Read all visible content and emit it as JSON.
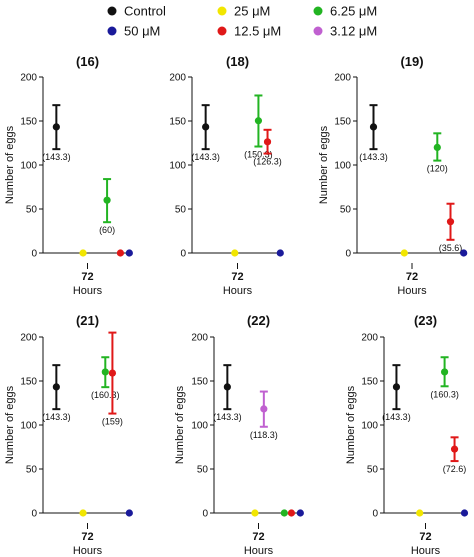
{
  "legend": [
    {
      "label": "Control",
      "color": "#111111"
    },
    {
      "label": "25 μM",
      "color": "#f2e600"
    },
    {
      "label": "6.25 μM",
      "color": "#22b422"
    },
    {
      "label": "50 μM",
      "color": "#1a1a9a"
    },
    {
      "label": "12.5 μM",
      "color": "#e01818"
    },
    {
      "label": "3.12 μM",
      "color": "#c060d0"
    }
  ],
  "chart_data": [
    {
      "type": "scatter",
      "title": "(16)",
      "xcategory": "72",
      "xlabel": "Hours",
      "ylabel": "Number of eggs",
      "ylim": [
        0,
        200
      ],
      "yticks": [
        0,
        50,
        100,
        150,
        200
      ],
      "points": [
        {
          "series": "Control",
          "value": 143.3,
          "err_low": 118,
          "err_high": 168,
          "label": "(143.3)",
          "pos": 0.15
        },
        {
          "series": "25 μM",
          "value": 0,
          "pos": 0.45
        },
        {
          "series": "6.25 μM",
          "value": 60,
          "err_low": 35,
          "err_high": 84,
          "label": "(60)",
          "pos": 0.72
        },
        {
          "series": "12.5 μM",
          "value": 0,
          "pos": 0.87
        },
        {
          "series": "50 μM",
          "value": 0,
          "pos": 0.97
        }
      ]
    },
    {
      "type": "scatter",
      "title": "(18)",
      "xcategory": "72",
      "xlabel": "Hours",
      "ylabel": "",
      "ylim": [
        0,
        200
      ],
      "yticks": [
        0,
        50,
        100,
        150,
        200
      ],
      "points": [
        {
          "series": "Control",
          "value": 143.3,
          "err_low": 118,
          "err_high": 168,
          "label": "(143.3)",
          "pos": 0.15
        },
        {
          "series": "25 μM",
          "value": 0,
          "pos": 0.47
        },
        {
          "series": "6.25 μM",
          "value": 150.3,
          "err_low": 121,
          "err_high": 179,
          "label": "(150.3)",
          "pos": 0.73
        },
        {
          "series": "12.5 μM",
          "value": 126.3,
          "err_low": 113,
          "err_high": 140,
          "label": "(126.3)",
          "pos": 0.83
        },
        {
          "series": "50 μM",
          "value": 0,
          "pos": 0.97
        }
      ]
    },
    {
      "type": "scatter",
      "title": "(19)",
      "xcategory": "72",
      "xlabel": "Hours",
      "ylabel": "Number of eggs",
      "ylim": [
        0,
        200
      ],
      "yticks": [
        0,
        50,
        100,
        150,
        200
      ],
      "points": [
        {
          "series": "Control",
          "value": 143.3,
          "err_low": 118,
          "err_high": 168,
          "label": "(143.3)",
          "pos": 0.15
        },
        {
          "series": "25 μM",
          "value": 0,
          "pos": 0.43
        },
        {
          "series": "6.25 μM",
          "value": 120,
          "err_low": 105,
          "err_high": 136,
          "label": "(120)",
          "pos": 0.73
        },
        {
          "series": "12.5 μM",
          "value": 35.6,
          "err_low": 15,
          "err_high": 56,
          "label": "(35.6)",
          "pos": 0.85
        },
        {
          "series": "50 μM",
          "value": 0,
          "pos": 0.97
        }
      ]
    },
    {
      "type": "scatter",
      "title": "(21)",
      "xcategory": "72",
      "xlabel": "Hours",
      "ylabel": "Number of eggs",
      "ylim": [
        0,
        200
      ],
      "yticks": [
        0,
        50,
        100,
        150,
        200
      ],
      "points": [
        {
          "series": "Control",
          "value": 143.3,
          "err_low": 118,
          "err_high": 168,
          "label": "(143.3)",
          "pos": 0.15
        },
        {
          "series": "25 μM",
          "value": 0,
          "pos": 0.45
        },
        {
          "series": "6.25 μM",
          "value": 160.3,
          "err_low": 143,
          "err_high": 177,
          "label": "(160.3)",
          "pos": 0.7
        },
        {
          "series": "12.5 μM",
          "value": 159,
          "err_low": 113,
          "err_high": 205,
          "label": "(159)",
          "pos": 0.78
        },
        {
          "series": "50 μM",
          "value": 0,
          "pos": 0.97
        }
      ]
    },
    {
      "type": "scatter",
      "title": "(22)",
      "xcategory": "72",
      "xlabel": "Hours",
      "ylabel": "Number of eggs",
      "ylim": [
        0,
        200
      ],
      "yticks": [
        0,
        50,
        100,
        150,
        200
      ],
      "points": [
        {
          "series": "Control",
          "value": 143.3,
          "err_low": 118,
          "err_high": 168,
          "label": "(143.3)",
          "pos": 0.15
        },
        {
          "series": "3.12 μM",
          "value": 118.3,
          "err_low": 98,
          "err_high": 138,
          "label": "(118.3)",
          "pos": 0.56
        },
        {
          "series": "25 μM",
          "value": 0,
          "pos": 0.46
        },
        {
          "series": "6.25 μM",
          "value": 0,
          "pos": 0.79
        },
        {
          "series": "12.5 μM",
          "value": 0,
          "pos": 0.87
        },
        {
          "series": "50 μM",
          "value": 0,
          "pos": 0.97
        }
      ]
    },
    {
      "type": "scatter",
      "title": "(23)",
      "xcategory": "72",
      "xlabel": "Hours",
      "ylabel": "Number of eggs",
      "ylim": [
        0,
        200
      ],
      "yticks": [
        0,
        50,
        100,
        150,
        200
      ],
      "points": [
        {
          "series": "Control",
          "value": 143.3,
          "err_low": 118,
          "err_high": 168,
          "label": "(143.3)",
          "pos": 0.15
        },
        {
          "series": "25 μM",
          "value": 0,
          "pos": 0.43
        },
        {
          "series": "6.25 μM",
          "value": 160.3,
          "err_low": 144,
          "err_high": 177,
          "label": "(160.3)",
          "pos": 0.73
        },
        {
          "series": "12.5 μM",
          "value": 72.6,
          "err_low": 59,
          "err_high": 86,
          "label": "(72.6)",
          "pos": 0.85
        },
        {
          "series": "50 μM",
          "value": 0,
          "pos": 0.97
        }
      ]
    }
  ]
}
